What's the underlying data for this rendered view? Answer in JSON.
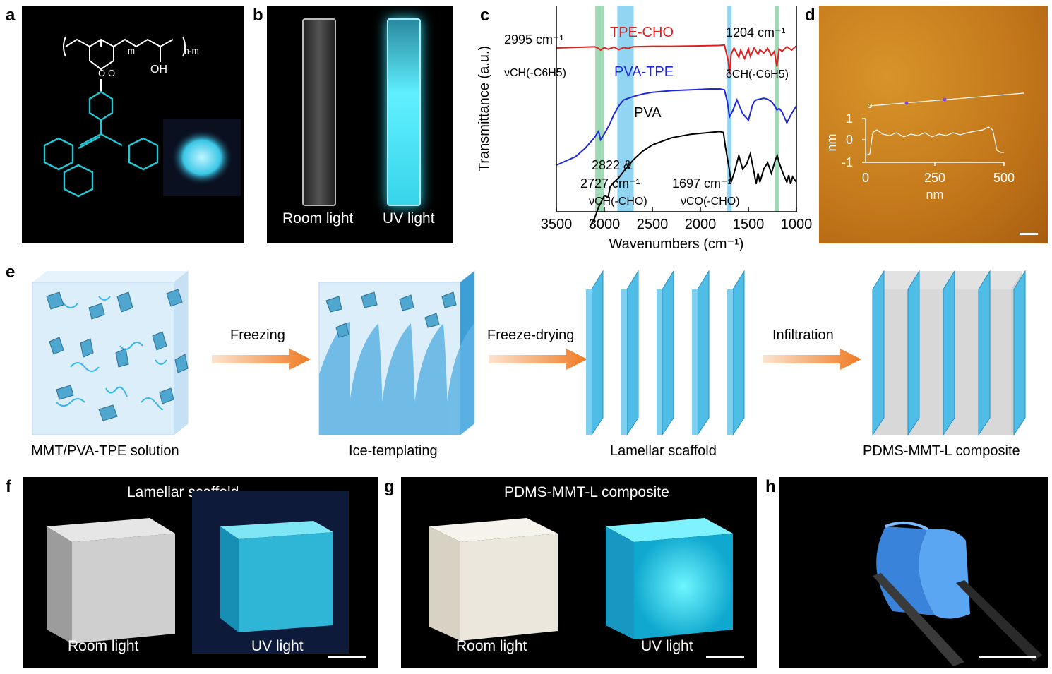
{
  "panels": {
    "a": {
      "label": "a",
      "subscript_m": "m",
      "subscript_nm": "n-m",
      "oh": "OH"
    },
    "b": {
      "label": "b",
      "left_caption": "Room light",
      "right_caption": "UV light"
    },
    "c": {
      "label": "c"
    },
    "d": {
      "label": "d",
      "inset_ylabel": "nm",
      "inset_xlabel": "nm",
      "inset_yticks": [
        "1",
        "0",
        "-1"
      ],
      "inset_xticks": [
        "0",
        "250",
        "500"
      ]
    },
    "e": {
      "label": "e",
      "steps": [
        "MMT/PVA-TPE solution",
        "Ice-templating",
        "Lamellar scaffold",
        "PDMS-MMT-L composite"
      ],
      "arrows": [
        "Freezing",
        "Freeze-drying",
        "Infiltration"
      ]
    },
    "f": {
      "label": "f",
      "title": "Lamellar scaffold",
      "left_caption": "Room light",
      "right_caption": "UV light"
    },
    "g": {
      "label": "g",
      "title": "PDMS-MMT-L composite",
      "left_caption": "Room light",
      "right_caption": "UV light"
    },
    "h": {
      "label": "h"
    }
  },
  "chart_data": {
    "type": "line",
    "title": "",
    "xlabel": "Wavenumbers (cm⁻¹)",
    "ylabel": "Transmittance (a.u.)",
    "xlim": [
      3500,
      1000
    ],
    "x_reversed": true,
    "xticks": [
      "3500",
      "3000",
      "2500",
      "2000",
      "1500",
      "1000"
    ],
    "highlight_bands": [
      {
        "center": 3050,
        "width": 90,
        "color": "#8ed3a8"
      },
      {
        "center": 2780,
        "width": 170,
        "color": "#7fcef0"
      },
      {
        "center": 1697,
        "width": 45,
        "color": "#7fcef0"
      },
      {
        "center": 1204,
        "width": 45,
        "color": "#8ed3a8"
      }
    ],
    "series": [
      {
        "name": "TPE-CHO",
        "color": "#e0201f",
        "x": [
          3500,
          3200,
          3100,
          3060,
          3040,
          3000,
          2960,
          2900,
          2850,
          2800,
          2750,
          2700,
          2500,
          2300,
          2000,
          1800,
          1750,
          1710,
          1697,
          1680,
          1650,
          1600,
          1580,
          1540,
          1500,
          1480,
          1440,
          1400,
          1380,
          1340,
          1300,
          1260,
          1230,
          1204,
          1180,
          1150,
          1100,
          1050,
          1000
        ],
        "y": [
          1.0,
          1.02,
          1.03,
          0.99,
          0.95,
          1.01,
          0.97,
          1.02,
          0.96,
          1.01,
          0.99,
          1.03,
          1.04,
          1.04,
          1.05,
          1.06,
          1.07,
          0.7,
          0.38,
          0.85,
          1.0,
          0.78,
          0.95,
          0.75,
          0.98,
          0.8,
          1.0,
          0.85,
          0.96,
          0.88,
          0.99,
          0.82,
          0.92,
          0.56,
          0.98,
          0.92,
          1.03,
          0.95,
          1.05
        ]
      },
      {
        "name": "PVA-TPE",
        "color": "#1f28d8",
        "x": [
          3500,
          3400,
          3300,
          3200,
          3100,
          3060,
          3040,
          3000,
          2950,
          2900,
          2850,
          2800,
          2700,
          2600,
          2500,
          2300,
          2100,
          1900,
          1800,
          1750,
          1720,
          1697,
          1660,
          1620,
          1560,
          1500,
          1460,
          1440,
          1420,
          1380,
          1340,
          1300,
          1260,
          1220,
          1204,
          1180,
          1150,
          1100,
          1050,
          1000
        ],
        "y": [
          0.05,
          0.1,
          0.15,
          0.25,
          0.38,
          0.45,
          0.35,
          0.42,
          0.52,
          0.65,
          0.75,
          0.82,
          0.86,
          0.89,
          0.91,
          0.93,
          0.94,
          0.95,
          0.95,
          0.94,
          0.8,
          0.62,
          0.7,
          0.82,
          0.66,
          0.58,
          0.75,
          0.8,
          0.82,
          0.83,
          0.84,
          0.83,
          0.8,
          0.74,
          0.7,
          0.72,
          0.68,
          0.55,
          0.66,
          0.75
        ]
      },
      {
        "name": "PVA",
        "color": "#000000",
        "x": [
          3150,
          3100,
          3060,
          3000,
          2960,
          2940,
          2900,
          2850,
          2800,
          2700,
          2600,
          2500,
          2300,
          2100,
          1900,
          1800,
          1760,
          1740,
          1700,
          1680,
          1650,
          1600,
          1560,
          1520,
          1480,
          1440,
          1420,
          1400,
          1380,
          1340,
          1300,
          1260,
          1220,
          1200,
          1180,
          1140,
          1100,
          1080,
          1060,
          1040,
          1000
        ],
        "y": [
          -0.2,
          -0.1,
          0.02,
          0.15,
          0.13,
          0.25,
          0.3,
          0.35,
          0.42,
          0.55,
          0.65,
          0.72,
          0.8,
          0.84,
          0.86,
          0.87,
          0.86,
          0.7,
          0.45,
          0.3,
          0.4,
          0.6,
          0.45,
          0.5,
          0.62,
          0.4,
          0.28,
          0.4,
          0.3,
          0.45,
          0.52,
          0.4,
          0.55,
          0.6,
          0.52,
          0.4,
          0.3,
          0.38,
          0.28,
          0.36,
          0.3
        ]
      }
    ],
    "series_labels": [
      "TPE-CHO",
      "PVA-TPE",
      "PVA"
    ],
    "annotations": [
      {
        "text": "2995 cm⁻¹",
        "color": "#000"
      },
      {
        "text": "νCH(-C6H5)",
        "color": "#000"
      },
      {
        "text": "1204 cm⁻¹",
        "color": "#000"
      },
      {
        "text": "δCH(-C6H5)",
        "color": "#000"
      },
      {
        "text": "2822 &",
        "color": "#000"
      },
      {
        "text": "2727 cm⁻¹",
        "color": "#000"
      },
      {
        "text": "νCH(-CHO)",
        "color": "#000"
      },
      {
        "text": "1697 cm⁻¹",
        "color": "#000"
      },
      {
        "text": "νCO(-CHO)",
        "color": "#000"
      }
    ]
  }
}
